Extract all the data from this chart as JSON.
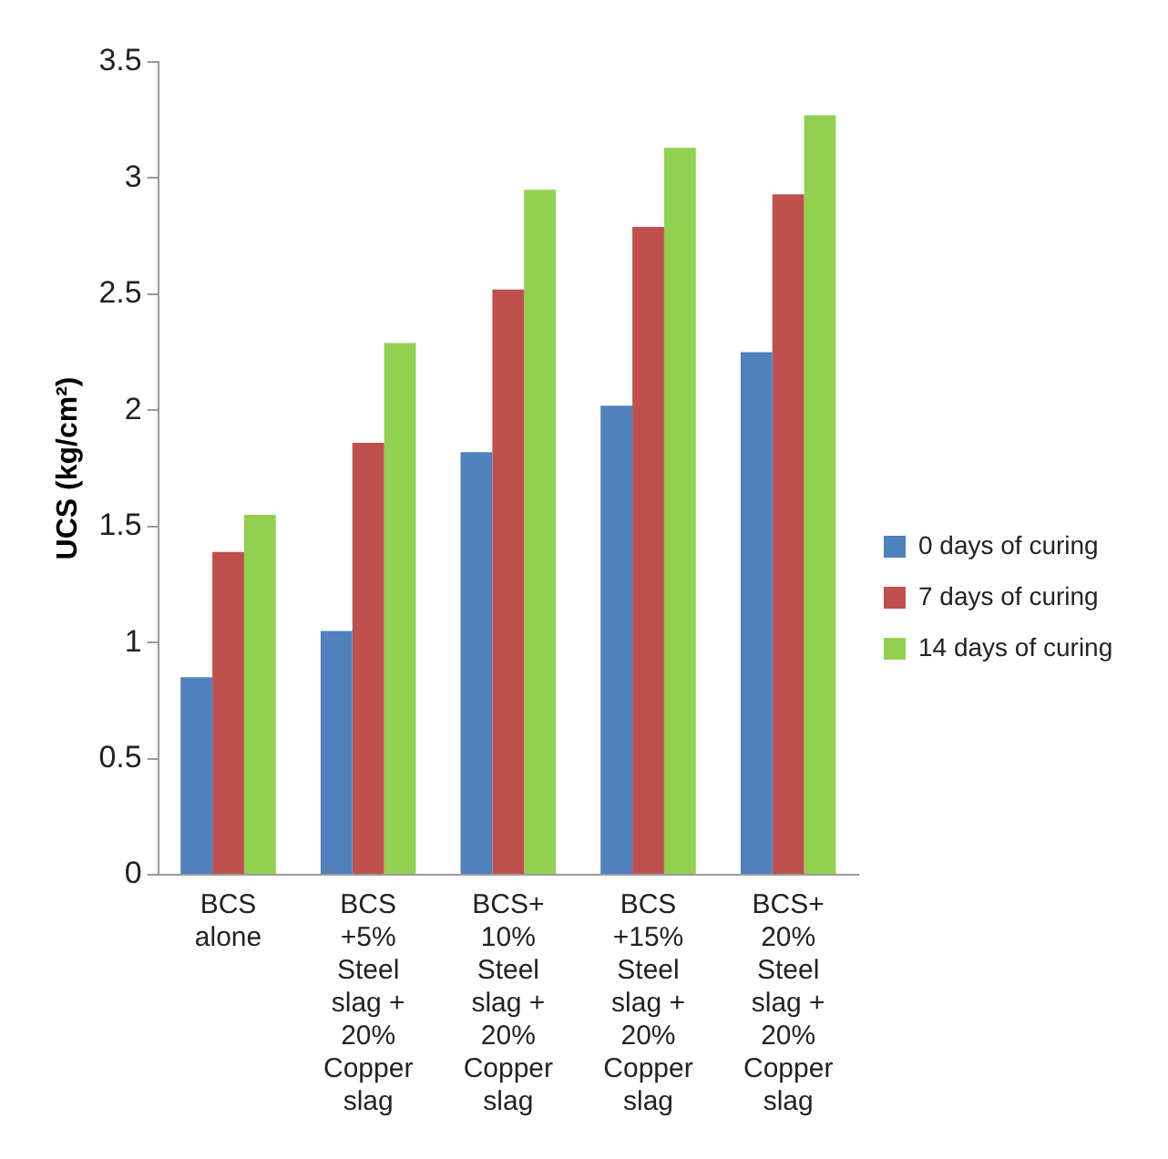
{
  "chart_data": {
    "type": "bar",
    "ylabel": "UCS (kg/cm²)",
    "categories": [
      "BCS alone",
      "BCS +5% Steel slag + 20% Copper slag",
      "BCS+ 10% Steel slag + 20% Copper slag",
      "BCS +15% Steel slag + 20% Copper slag",
      "BCS+ 20% Steel slag + 20% Copper slag"
    ],
    "series": [
      {
        "name": "0 days of curing",
        "color": "#4f81bd",
        "values": [
          0.85,
          1.05,
          1.82,
          2.02,
          2.25
        ]
      },
      {
        "name": "7 days of curing",
        "color": "#c0504d",
        "values": [
          1.39,
          1.86,
          2.52,
          2.79,
          2.93
        ]
      },
      {
        "name": "14 days of curing",
        "color": "#92d050",
        "values": [
          1.55,
          2.29,
          2.95,
          3.13,
          3.27
        ]
      }
    ],
    "ylim": [
      0,
      3.5
    ],
    "yticks": [
      0,
      0.5,
      1,
      1.5,
      2,
      2.5,
      3,
      3.5
    ],
    "grid": false,
    "legend": "right"
  }
}
